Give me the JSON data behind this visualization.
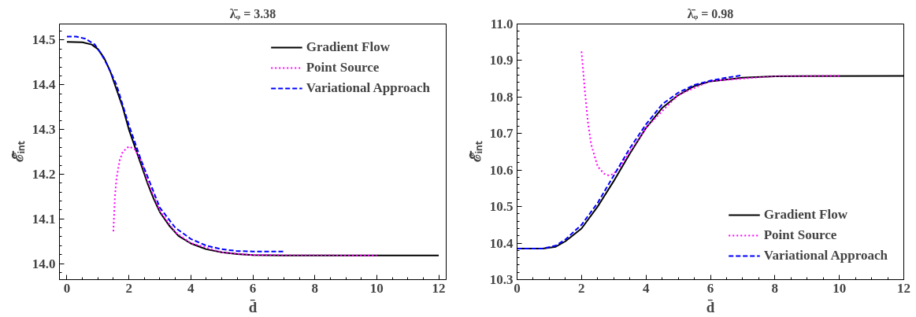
{
  "chart_data": [
    {
      "type": "line",
      "title": "λ̄ᵩ = 3.38",
      "xlabel": "d̄",
      "ylabel": "ℰ̄ᵢₙₜ",
      "xlim": [
        -0.24,
        12.24
      ],
      "ylim": [
        13.964,
        14.536
      ],
      "xticks": [
        0,
        2,
        4,
        6,
        8,
        10,
        12
      ],
      "yticks": [
        {
          "value": 14.0,
          "label": "14.0"
        },
        14.1,
        14.2,
        14.3,
        14.4,
        14.5
      ],
      "grid": false,
      "legend": "top right",
      "series": [
        {
          "name": "Gradient Flow",
          "color": "#000000",
          "line_style": "solid",
          "x": [
            0,
            0.5,
            0.8,
            1.0,
            1.2,
            1.4,
            1.6,
            1.8,
            2.0,
            2.2,
            2.4,
            2.6,
            2.8,
            3.0,
            3.3,
            3.6,
            4.0,
            4.5,
            5,
            5.5,
            6,
            7,
            12
          ],
          "values": [
            14.496,
            14.495,
            14.49,
            14.48,
            14.46,
            14.43,
            14.39,
            14.35,
            14.3,
            14.26,
            14.22,
            14.18,
            14.145,
            14.115,
            14.085,
            14.062,
            14.045,
            14.032,
            14.025,
            14.021,
            14.019,
            14.018,
            14.018
          ]
        },
        {
          "name": "Point Source",
          "color": "#ff00ff",
          "line_style": "dotted",
          "x": [
            1.5,
            1.55,
            1.6,
            1.7,
            1.8,
            2.0,
            2.2,
            2.4,
            2.6,
            3.0,
            3.5,
            4.0,
            5.0,
            6.0,
            10.0
          ],
          "values": [
            14.072,
            14.15,
            14.19,
            14.23,
            14.25,
            14.262,
            14.255,
            14.23,
            14.185,
            14.118,
            14.07,
            14.046,
            14.025,
            14.019,
            14.018
          ]
        },
        {
          "name": "Variational Approach",
          "color": "#0000ff",
          "line_style": "dashed",
          "x": [
            0,
            0.3,
            0.6,
            0.9,
            1.1,
            1.3,
            1.6,
            2.0,
            2.4,
            3.0,
            3.5,
            4.0,
            4.5,
            5.0,
            5.5,
            6.0,
            7.0
          ],
          "values": [
            14.508,
            14.508,
            14.503,
            14.49,
            14.47,
            14.445,
            14.4,
            14.31,
            14.23,
            14.125,
            14.08,
            14.055,
            14.04,
            14.032,
            14.028,
            14.027,
            14.027
          ]
        }
      ]
    },
    {
      "type": "line",
      "title": "λ̄ᵩ = 0.98",
      "xlabel": "d̄",
      "ylabel": "ℰ̄ᵢₙₜ",
      "xlim": [
        0,
        12
      ],
      "ylim": [
        10.3,
        11.0
      ],
      "xticks": [
        0,
        2,
        4,
        6,
        8,
        10,
        12
      ],
      "yticks": [
        10.3,
        10.4,
        10.5,
        10.6,
        10.7,
        10.8,
        10.9,
        {
          "value": 11.0,
          "label": "11.0"
        }
      ],
      "grid": false,
      "legend": "bottom right",
      "series": [
        {
          "name": "Gradient Flow",
          "color": "#000000",
          "line_style": "solid",
          "x": [
            0,
            0.8,
            1.2,
            1.5,
            2.0,
            2.5,
            3.0,
            3.5,
            4.0,
            4.5,
            5.0,
            5.5,
            6.0,
            7.0,
            8.0,
            12.0
          ],
          "values": [
            10.385,
            10.385,
            10.39,
            10.405,
            10.44,
            10.5,
            10.57,
            10.645,
            10.715,
            10.77,
            10.805,
            10.83,
            10.843,
            10.853,
            10.857,
            10.858
          ]
        },
        {
          "name": "Point Source",
          "color": "#ff00ff",
          "line_style": "dotted",
          "x": [
            2.0,
            2.1,
            2.2,
            2.3,
            2.5,
            2.7,
            2.85,
            3.0,
            3.2,
            3.5,
            4.0,
            5.0,
            6.0,
            8.0,
            10.0
          ],
          "values": [
            10.925,
            10.82,
            10.73,
            10.67,
            10.61,
            10.59,
            10.585,
            10.59,
            10.61,
            10.65,
            10.716,
            10.806,
            10.844,
            10.857,
            10.858
          ]
        },
        {
          "name": "Variational Approach",
          "color": "#0000ff",
          "line_style": "dashed",
          "x": [
            0,
            0.8,
            1.2,
            1.5,
            2.0,
            2.5,
            3.0,
            3.5,
            4.0,
            4.5,
            5.0,
            5.5,
            6.0,
            6.5,
            7.0
          ],
          "values": [
            10.385,
            10.385,
            10.393,
            10.41,
            10.45,
            10.51,
            10.585,
            10.66,
            10.725,
            10.78,
            10.812,
            10.833,
            10.845,
            10.853,
            10.86
          ]
        }
      ]
    }
  ]
}
